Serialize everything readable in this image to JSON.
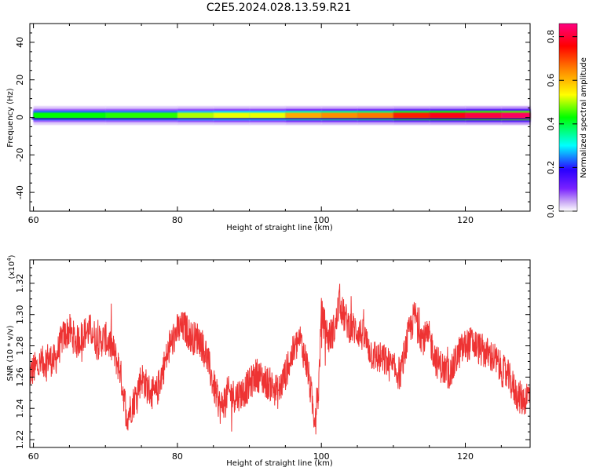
{
  "title": "C2E5.2024.028.13.59.R21",
  "chart_data": [
    {
      "type": "heatmap",
      "xlabel": "Height of straight line (km)",
      "ylabel": "Frequency (Hz)",
      "xlim": [
        59.5,
        129
      ],
      "ylim": [
        -50,
        50
      ],
      "xticks": [
        60,
        80,
        100,
        120
      ],
      "yticks": [
        40,
        20,
        0,
        -20,
        -40
      ],
      "colorbar": {
        "label": "Normalized spectral amplitude",
        "range": [
          0.0,
          0.86
        ],
        "ticks": [
          0.0,
          0.2,
          0.4,
          0.6,
          0.8
        ],
        "colormap": "rainbow-magenta"
      },
      "band": {
        "center_hz": 1,
        "halfwidth_hz": [
          1.5,
          2.5,
          3.5,
          5
        ],
        "amplitude_by_height": {
          "x": [
            60,
            70,
            80,
            85,
            90,
            95,
            100,
            105,
            110,
            115,
            120,
            125,
            129
          ],
          "values": [
            0.42,
            0.44,
            0.45,
            0.55,
            0.5,
            0.55,
            0.68,
            0.6,
            0.72,
            0.75,
            0.8,
            0.82,
            0.85
          ]
        }
      }
    },
    {
      "type": "line",
      "xlabel": "Height of straight line (km)",
      "ylabel": "SNR (10 * v/v)",
      "yscale_label": "(x10",
      "yscale_exp": "4",
      "yscale_close": ")",
      "xlim": [
        59.5,
        129
      ],
      "ylim": [
        1.215,
        1.335
      ],
      "xticks": [
        60,
        80,
        100,
        120
      ],
      "yticks": [
        "1.22",
        "1.24",
        "1.26",
        "1.28",
        "1.30",
        "1.32"
      ],
      "color": "#ee3333",
      "series": [
        {
          "x": [
            59.5,
            60,
            61,
            62,
            63,
            64,
            65,
            66,
            67,
            68,
            69,
            70,
            71,
            72,
            73,
            74,
            75,
            76,
            77,
            78,
            79,
            80,
            81,
            82,
            83,
            84,
            85,
            86,
            87,
            88,
            89,
            90,
            91,
            92,
            93,
            94,
            95,
            96,
            97,
            98,
            99,
            99.6,
            100,
            101,
            102,
            102.5,
            103,
            104,
            105,
            106,
            107,
            108,
            109,
            110,
            111,
            112,
            113,
            114,
            115,
            116,
            117,
            118,
            119,
            120,
            121,
            122,
            123,
            124,
            125,
            126,
            127,
            128,
            129
          ],
          "values": [
            1.262,
            1.265,
            1.268,
            1.272,
            1.27,
            1.285,
            1.29,
            1.282,
            1.288,
            1.29,
            1.282,
            1.285,
            1.278,
            1.265,
            1.235,
            1.245,
            1.26,
            1.252,
            1.248,
            1.265,
            1.28,
            1.29,
            1.292,
            1.285,
            1.285,
            1.275,
            1.255,
            1.24,
            1.25,
            1.248,
            1.25,
            1.255,
            1.262,
            1.258,
            1.255,
            1.25,
            1.262,
            1.275,
            1.285,
            1.268,
            1.235,
            1.25,
            1.3,
            1.285,
            1.292,
            1.31,
            1.3,
            1.292,
            1.29,
            1.285,
            1.275,
            1.272,
            1.27,
            1.265,
            1.262,
            1.285,
            1.3,
            1.285,
            1.285,
            1.27,
            1.265,
            1.262,
            1.275,
            1.28,
            1.282,
            1.278,
            1.275,
            1.272,
            1.265,
            1.26,
            1.25,
            1.245,
            1.25
          ]
        }
      ]
    }
  ]
}
